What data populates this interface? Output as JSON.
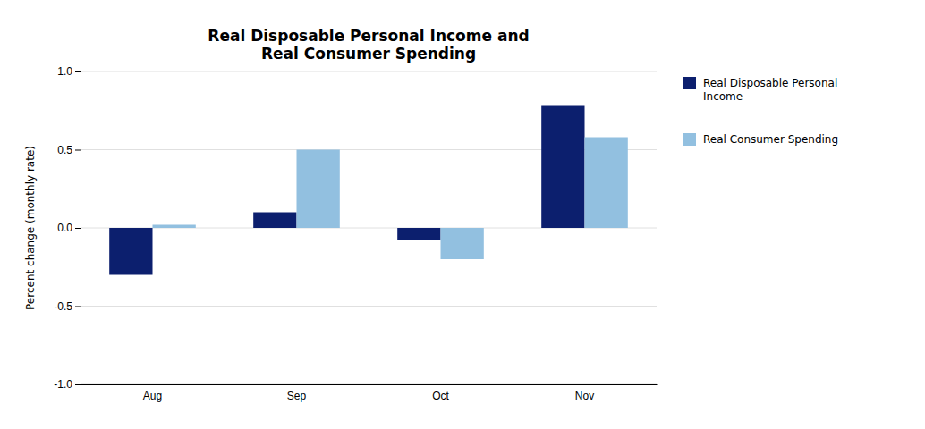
{
  "chart_data": {
    "type": "bar",
    "title": "Real Disposable Personal Income and\nReal Consumer Spending",
    "ylabel": "Percent change (monthly rate)",
    "categories": [
      "Aug",
      "Sep",
      "Oct",
      "Nov"
    ],
    "series": [
      {
        "name": "Real Disposable Personal\nIncome",
        "color": "#0C1F6E",
        "values": [
          -0.3,
          0.1,
          -0.08,
          0.78
        ]
      },
      {
        "name": "Real Consumer Spending",
        "color": "#92C0E0",
        "values": [
          0.02,
          0.5,
          -0.2,
          0.58
        ]
      }
    ],
    "ylim": [
      -1.0,
      1.0
    ],
    "yticks": [
      {
        "value": -1.0,
        "label": "-1.0"
      },
      -0.5,
      {
        "value": 0.0,
        "label": "0.0"
      },
      0.5,
      {
        "value": 1.0,
        "label": "1.0"
      }
    ],
    "grid": true,
    "legend": "right"
  }
}
